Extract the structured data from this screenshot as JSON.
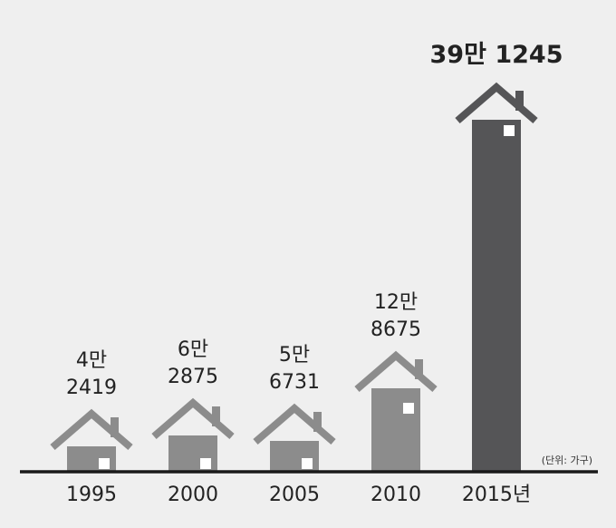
{
  "chart_data": {
    "type": "bar",
    "categories": [
      "1995",
      "2000",
      "2005",
      "2010",
      "2015년"
    ],
    "values": [
      42419,
      62875,
      56731,
      128675,
      391245
    ],
    "value_labels": [
      [
        "4만",
        "2419"
      ],
      [
        "6만",
        "2875"
      ],
      [
        "5만",
        "6731"
      ],
      [
        "12만",
        "8675"
      ],
      [
        "39만 1245"
      ]
    ],
    "unit_note": "(단위: 가구)",
    "ylim": [
      0,
      400000
    ],
    "bar_style": "house",
    "colors": {
      "house": "#8c8c8c",
      "house_highlight": "#555557",
      "window": "#ffffff",
      "baseline": "#1a1a1a",
      "background": "#efefef"
    }
  }
}
